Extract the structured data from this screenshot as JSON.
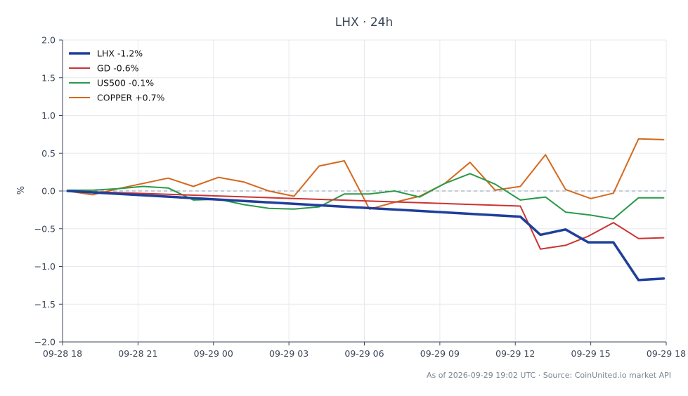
{
  "chart_data": {
    "type": "line",
    "title": "LHX · 24h",
    "ylabel": "%",
    "xlabel": "",
    "ylim": [
      -2.0,
      2.0
    ],
    "xlim": [
      0,
      24
    ],
    "yticks": [
      -2.0,
      -1.5,
      -1.0,
      -0.5,
      0.0,
      0.5,
      1.0,
      1.5,
      2.0
    ],
    "ytick_labels": [
      "−2.0",
      "−1.5",
      "−1.0",
      "−0.5",
      "0.0",
      "0.5",
      "1.0",
      "1.5",
      "2.0"
    ],
    "xticks": [
      0,
      3,
      6,
      9,
      12,
      15,
      18,
      21,
      24
    ],
    "xtick_labels": [
      "09-28 18",
      "09-28 21",
      "09-29 00",
      "09-29 03",
      "09-29 06",
      "09-29 09",
      "09-29 12",
      "09-29 15",
      "09-29 18"
    ],
    "grid": true,
    "reference_line": 0.0,
    "legend_position": "top-left",
    "series": [
      {
        "name": "LHX -1.2%",
        "color": "#1f3f9a",
        "x": [
          0.2,
          18.2,
          19.0,
          20.0,
          20.9,
          21.9,
          22.9,
          23.9
        ],
        "values": [
          0.0,
          -0.34,
          -0.58,
          -0.51,
          -0.68,
          -0.68,
          -1.18,
          -1.16
        ]
      },
      {
        "name": "GD -0.6%",
        "color": "#cc3333",
        "x": [
          0.2,
          18.2,
          19.0,
          20.0,
          20.9,
          21.9,
          22.9,
          23.9
        ],
        "values": [
          0.0,
          -0.2,
          -0.77,
          -0.72,
          -0.6,
          -0.42,
          -0.63,
          -0.62
        ]
      },
      {
        "name": "US500 -0.1%",
        "color": "#2a9a4a",
        "x": [
          0.2,
          1.2,
          2.2,
          3.2,
          4.2,
          5.2,
          6.2,
          7.2,
          8.2,
          9.2,
          10.2,
          11.2,
          12.2,
          13.2,
          14.2,
          15.2,
          16.2,
          17.2,
          18.2,
          19.2,
          20.0,
          21.0,
          21.9,
          22.9,
          23.9
        ],
        "values": [
          0.01,
          0.01,
          0.03,
          0.06,
          0.04,
          -0.12,
          -0.11,
          -0.18,
          -0.23,
          -0.24,
          -0.21,
          -0.04,
          -0.04,
          0.0,
          -0.08,
          0.1,
          0.23,
          0.09,
          -0.12,
          -0.08,
          -0.28,
          -0.32,
          -0.37,
          -0.09,
          -0.09
        ]
      },
      {
        "name": "COPPER +0.7%",
        "color": "#d4691f",
        "x": [
          0.2,
          1.2,
          2.2,
          3.2,
          4.2,
          5.2,
          6.2,
          7.2,
          8.2,
          9.2,
          10.2,
          11.2,
          12.2,
          13.2,
          14.2,
          15.2,
          16.2,
          17.2,
          18.2,
          19.2,
          20.0,
          21.0,
          21.9,
          22.9,
          23.9
        ],
        "values": [
          0.0,
          -0.05,
          0.03,
          0.1,
          0.17,
          0.06,
          0.18,
          0.12,
          0.0,
          -0.07,
          0.33,
          0.4,
          -0.24,
          -0.15,
          -0.07,
          0.1,
          0.38,
          0.01,
          0.06,
          0.48,
          0.02,
          -0.1,
          -0.03,
          0.69,
          0.68
        ]
      }
    ]
  },
  "footer": "As of 2026-09-29 19:02 UTC · Source: CoinUnited.io market API"
}
